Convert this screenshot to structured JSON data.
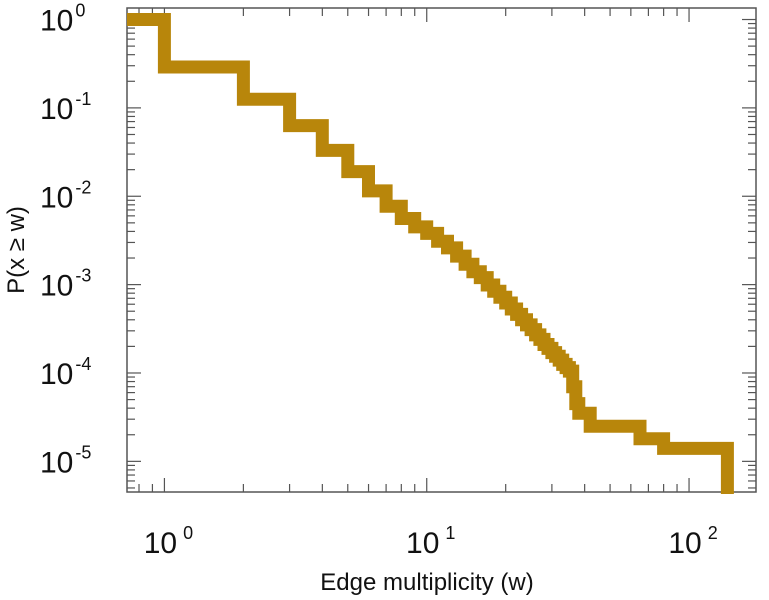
{
  "chart_data": {
    "type": "line",
    "step": true,
    "title": "",
    "xlabel": "Edge multiplicity (w)",
    "ylabel": "P(x ≥ w)",
    "xscale": "log",
    "yscale": "log",
    "xlim": [
      0.72,
      180
    ],
    "ylim": [
      4.5e-06,
      1.35
    ],
    "grid": false,
    "x_ticks": [
      {
        "value": 1,
        "base": "10",
        "exp": "0"
      },
      {
        "value": 10,
        "base": "10",
        "exp": "1"
      },
      {
        "value": 100,
        "base": "10",
        "exp": "2"
      }
    ],
    "y_ticks": [
      {
        "value": 1,
        "base": "10",
        "exp": "0"
      },
      {
        "value": 0.1,
        "base": "10",
        "exp": "-1"
      },
      {
        "value": 0.01,
        "base": "10",
        "exp": "-2"
      },
      {
        "value": 0.001,
        "base": "10",
        "exp": "-3"
      },
      {
        "value": 0.0001,
        "base": "10",
        "exp": "-4"
      },
      {
        "value": 1e-05,
        "base": "10",
        "exp": "-5"
      }
    ],
    "series": [
      {
        "color": "#b8860b",
        "x": [
          0.7,
          1,
          2,
          3,
          4,
          5,
          6,
          7,
          8,
          9,
          10,
          11,
          12,
          13,
          14,
          15,
          16,
          17,
          18,
          19,
          20,
          21,
          22,
          23,
          24,
          25,
          26,
          27,
          28,
          29,
          30,
          31,
          32,
          33,
          34,
          35,
          36,
          37,
          38,
          40,
          42,
          60,
          65,
          80,
          120,
          140
        ],
        "y": [
          1.0,
          0.29,
          0.125,
          0.063,
          0.033,
          0.019,
          0.0115,
          0.0077,
          0.0056,
          0.0045,
          0.0038,
          0.0031,
          0.0026,
          0.0021,
          0.0017,
          0.0014,
          0.0012,
          0.00099,
          0.00084,
          0.00072,
          0.00062,
          0.00053,
          0.00046,
          0.0004,
          0.00035,
          0.00031,
          0.00027,
          0.00024,
          0.00021,
          0.00019,
          0.00017,
          0.000155,
          0.00014,
          0.000125,
          0.000115,
          0.000105,
          7e-05,
          4.5e-05,
          3.5e-05,
          3.5e-05,
          2.5e-05,
          2.5e-05,
          1.8e-05,
          1.4e-05,
          1.4e-05,
          5.6e-06
        ]
      }
    ]
  }
}
